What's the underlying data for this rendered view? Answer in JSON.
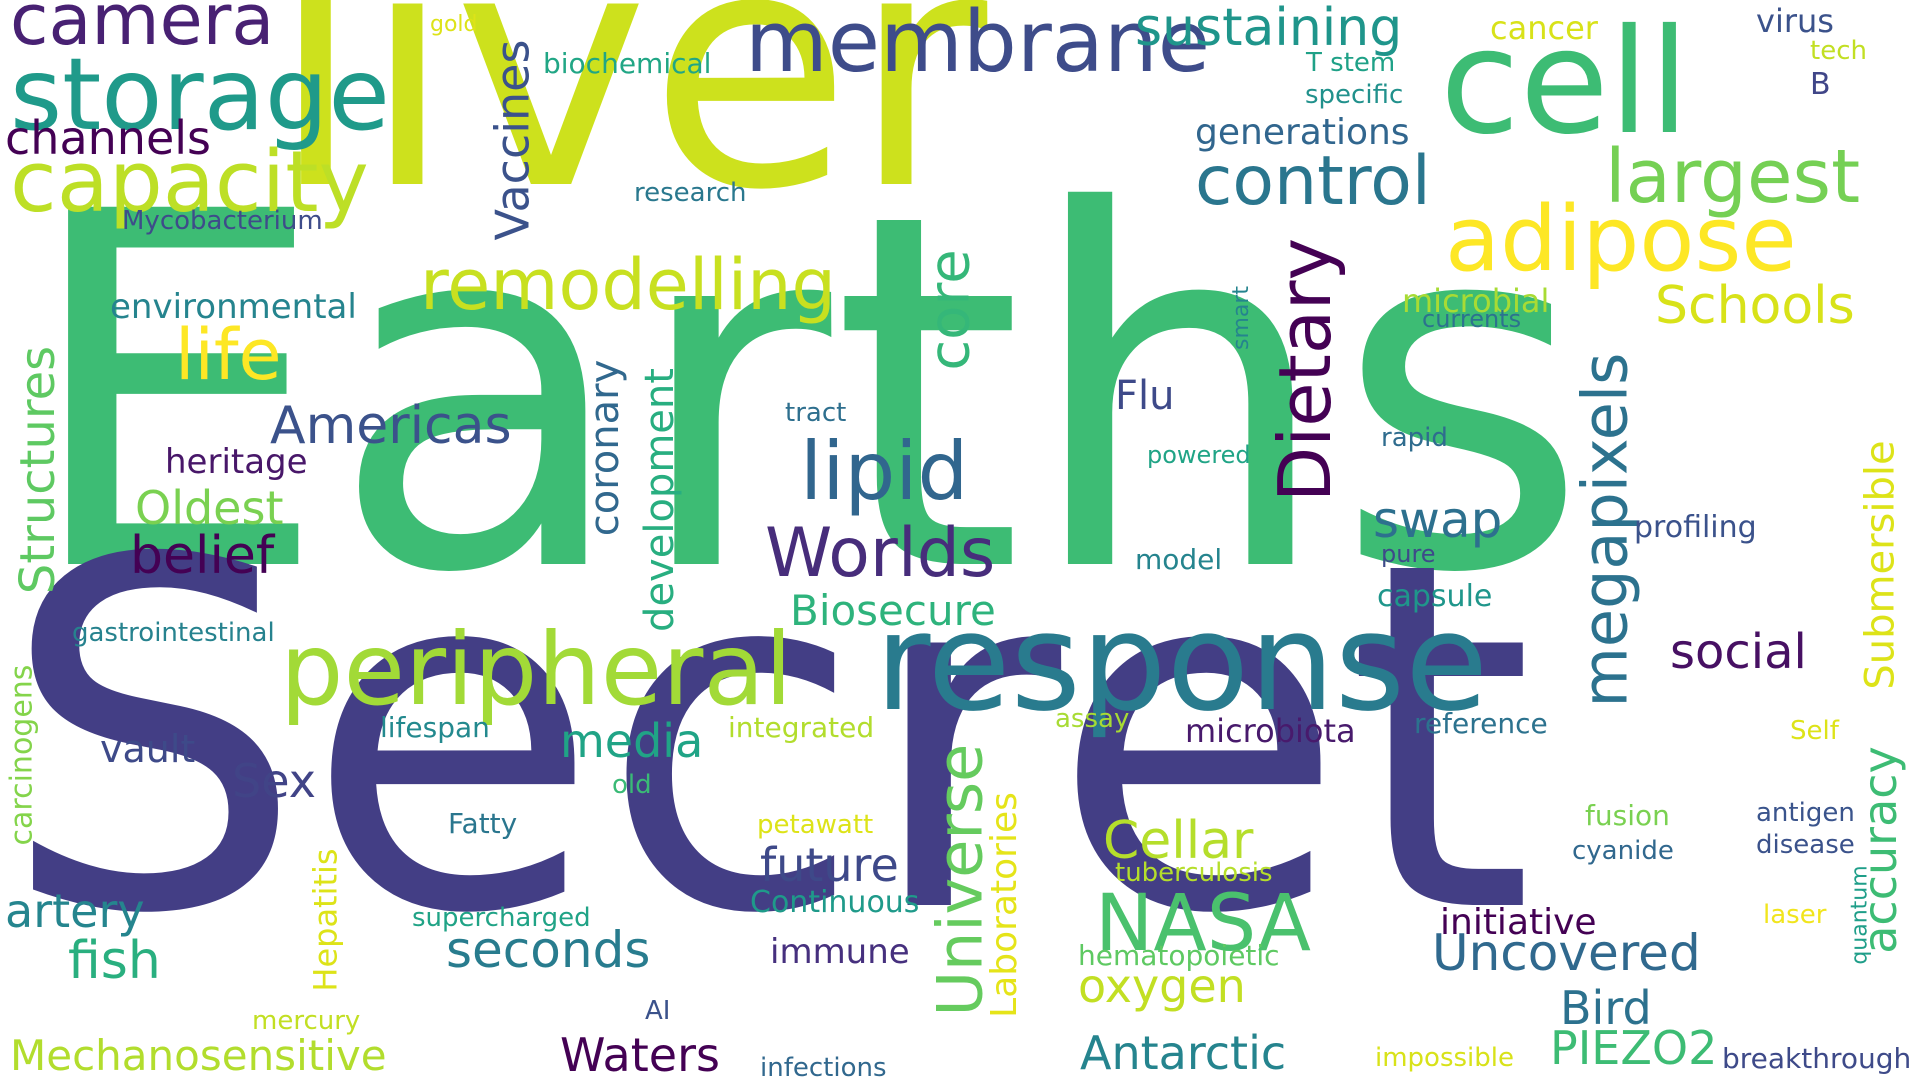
{
  "background": "#ffffff",
  "palette": [
    "#440154",
    "#443a83",
    "#31688e",
    "#21918c",
    "#35b779",
    "#90d743",
    "#c8e020",
    "#fde725"
  ],
  "words": [
    {
      "text": "Earths",
      "color": "#3dbc74",
      "orientation": "horizontal"
    },
    {
      "text": "Secret",
      "color": "#433e85",
      "orientation": "horizontal"
    },
    {
      "text": "liver",
      "color": "#cde11d",
      "orientation": "horizontal"
    },
    {
      "text": "response",
      "color": "#297b8e",
      "orientation": "horizontal"
    },
    {
      "text": "cell",
      "color": "#3dbc74",
      "orientation": "horizontal"
    },
    {
      "text": "storage",
      "color": "#1f9a8a",
      "orientation": "horizontal"
    },
    {
      "text": "peripheral",
      "color": "#a2da37",
      "orientation": "horizontal"
    },
    {
      "text": "membrane",
      "color": "#3e4c8a",
      "orientation": "horizontal"
    },
    {
      "text": "capacity",
      "color": "#bddf26",
      "orientation": "horizontal"
    },
    {
      "text": "adipose",
      "color": "#fde725",
      "orientation": "horizontal"
    },
    {
      "text": "camera",
      "color": "#482173",
      "orientation": "horizontal"
    },
    {
      "text": "control",
      "color": "#2a768e",
      "orientation": "horizontal"
    },
    {
      "text": "largest",
      "color": "#75d054",
      "orientation": "horizontal"
    },
    {
      "text": "remodelling",
      "color": "#c8e020",
      "orientation": "horizontal"
    },
    {
      "text": "lipid",
      "color": "#31668e",
      "orientation": "horizontal"
    },
    {
      "text": "Worlds",
      "color": "#472d7b",
      "orientation": "horizontal"
    },
    {
      "text": "NASA",
      "color": "#4ac16d",
      "orientation": "horizontal"
    },
    {
      "text": "life",
      "color": "#fde725",
      "orientation": "horizontal"
    },
    {
      "text": "sustaining",
      "color": "#1f958b",
      "orientation": "horizontal"
    },
    {
      "text": "Schools",
      "color": "#d8e219",
      "orientation": "horizontal"
    },
    {
      "text": "Americas",
      "color": "#3b528b",
      "orientation": "horizontal"
    },
    {
      "text": "channels",
      "color": "#440154",
      "orientation": "horizontal"
    },
    {
      "text": "Dietary",
      "color": "#440154",
      "orientation": "vertical"
    },
    {
      "text": "megapixels",
      "color": "#2c728e",
      "orientation": "vertical"
    },
    {
      "text": "Universe",
      "color": "#65cb5e",
      "orientation": "vertical"
    },
    {
      "text": "Structures",
      "color": "#5ec962",
      "orientation": "vertical"
    },
    {
      "text": "Vaccines",
      "color": "#3b528b",
      "orientation": "vertical"
    },
    {
      "text": "core",
      "color": "#35b779",
      "orientation": "vertical"
    },
    {
      "text": "coronary",
      "color": "#31688e",
      "orientation": "vertical"
    },
    {
      "text": "development",
      "color": "#28ae80",
      "orientation": "vertical"
    },
    {
      "text": "Submersible",
      "color": "#dde318",
      "orientation": "vertical"
    },
    {
      "text": "accuracy",
      "color": "#3dbc74",
      "orientation": "vertical"
    },
    {
      "text": "Laboratories",
      "color": "#e5e419",
      "orientation": "vertical"
    },
    {
      "text": "Hepatitis",
      "color": "#dde318",
      "orientation": "vertical"
    },
    {
      "text": "carcinogens",
      "color": "#84d44b",
      "orientation": "vertical"
    },
    {
      "text": "quantum",
      "color": "#1f9e89",
      "orientation": "vertical"
    },
    {
      "text": "smart",
      "color": "#25848e",
      "orientation": "vertical"
    },
    {
      "text": "belief",
      "color": "#440154",
      "orientation": "horizontal"
    },
    {
      "text": "Oldest",
      "color": "#7ad151",
      "orientation": "horizontal"
    },
    {
      "text": "heritage",
      "color": "#481769",
      "orientation": "horizontal"
    },
    {
      "text": "environmental",
      "color": "#25848e",
      "orientation": "horizontal"
    },
    {
      "text": "Mycobacterium",
      "color": "#3e4c8a",
      "orientation": "horizontal"
    },
    {
      "text": "research",
      "color": "#2a788e",
      "orientation": "horizontal"
    },
    {
      "text": "biochemical",
      "color": "#21a685",
      "orientation": "horizontal"
    },
    {
      "text": "gold",
      "color": "#dde318",
      "orientation": "horizontal"
    },
    {
      "text": "generations",
      "color": "#31668e",
      "orientation": "horizontal"
    },
    {
      "text": "T stem",
      "color": "#1fa187",
      "orientation": "horizontal"
    },
    {
      "text": "specific",
      "color": "#21918c",
      "orientation": "horizontal"
    },
    {
      "text": "cancer",
      "color": "#d8e219",
      "orientation": "horizontal"
    },
    {
      "text": "virus",
      "color": "#3b528b",
      "orientation": "horizontal"
    },
    {
      "text": "tech",
      "color": "#c2df23",
      "orientation": "horizontal"
    },
    {
      "text": "B",
      "color": "#404688",
      "orientation": "horizontal"
    },
    {
      "text": "microbial",
      "color": "#a8db34",
      "orientation": "horizontal"
    },
    {
      "text": "currents",
      "color": "#2c728e",
      "orientation": "horizontal"
    },
    {
      "text": "Flu",
      "color": "#3e4a89",
      "orientation": "horizontal"
    },
    {
      "text": "tract",
      "color": "#2e6f8e",
      "orientation": "horizontal"
    },
    {
      "text": "powered",
      "color": "#20a486",
      "orientation": "horizontal"
    },
    {
      "text": "rapid",
      "color": "#2f6c8e",
      "orientation": "horizontal"
    },
    {
      "text": "swap",
      "color": "#2d708e",
      "orientation": "horizontal"
    },
    {
      "text": "profiling",
      "color": "#3b528b",
      "orientation": "horizontal"
    },
    {
      "text": "pure",
      "color": "#3e4a89",
      "orientation": "horizontal"
    },
    {
      "text": "model",
      "color": "#25848e",
      "orientation": "horizontal"
    },
    {
      "text": "capsule",
      "color": "#1f968b",
      "orientation": "horizontal"
    },
    {
      "text": "Biosecure",
      "color": "#2eb37c",
      "orientation": "horizontal"
    },
    {
      "text": "social",
      "color": "#471063",
      "orientation": "horizontal"
    },
    {
      "text": "gastrointestinal",
      "color": "#26828e",
      "orientation": "horizontal"
    },
    {
      "text": "media",
      "color": "#20a486",
      "orientation": "horizontal"
    },
    {
      "text": "lifespan",
      "color": "#23898e",
      "orientation": "horizontal"
    },
    {
      "text": "integrated",
      "color": "#b2dd2d",
      "orientation": "horizontal"
    },
    {
      "text": "assay",
      "color": "#a8db34",
      "orientation": "horizontal"
    },
    {
      "text": "microbiota",
      "color": "#481a6c",
      "orientation": "horizontal"
    },
    {
      "text": "reference",
      "color": "#2c728e",
      "orientation": "horizontal"
    },
    {
      "text": "Self",
      "color": "#dde318",
      "orientation": "horizontal"
    },
    {
      "text": "vault",
      "color": "#3e4a89",
      "orientation": "horizontal"
    },
    {
      "text": "Sex",
      "color": "#414487",
      "orientation": "horizontal"
    },
    {
      "text": "old",
      "color": "#3aba76",
      "orientation": "horizontal"
    },
    {
      "text": "Fatty",
      "color": "#2a768e",
      "orientation": "horizontal"
    },
    {
      "text": "petawatt",
      "color": "#dde318",
      "orientation": "horizontal"
    },
    {
      "text": "Cellar",
      "color": "#b5de2b",
      "orientation": "horizontal"
    },
    {
      "text": "fusion",
      "color": "#7ad151",
      "orientation": "horizontal"
    },
    {
      "text": "antigen",
      "color": "#3a548c",
      "orientation": "horizontal"
    },
    {
      "text": "disease",
      "color": "#3b528b",
      "orientation": "horizontal"
    },
    {
      "text": "cyanide",
      "color": "#31688e",
      "orientation": "horizontal"
    },
    {
      "text": "future",
      "color": "#3e4989",
      "orientation": "horizontal"
    },
    {
      "text": "tuberculosis",
      "color": "#b5de2b",
      "orientation": "horizontal"
    },
    {
      "text": "Continuous",
      "color": "#1f9a8a",
      "orientation": "horizontal"
    },
    {
      "text": "artery",
      "color": "#25858e",
      "orientation": "horizontal"
    },
    {
      "text": "supercharged",
      "color": "#20a386",
      "orientation": "horizontal"
    },
    {
      "text": "fish",
      "color": "#29af7f",
      "orientation": "horizontal"
    },
    {
      "text": "seconds",
      "color": "#287c8e",
      "orientation": "horizontal"
    },
    {
      "text": "immune",
      "color": "#46307e",
      "orientation": "horizontal"
    },
    {
      "text": "initiative",
      "color": "#440154",
      "orientation": "horizontal"
    },
    {
      "text": "Uncovered",
      "color": "#30698e",
      "orientation": "horizontal"
    },
    {
      "text": "laser",
      "color": "#f1e51d",
      "orientation": "horizontal"
    },
    {
      "text": "hematopoietic",
      "color": "#5ec962",
      "orientation": "horizontal"
    },
    {
      "text": "oxygen",
      "color": "#c2df23",
      "orientation": "horizontal"
    },
    {
      "text": "Bird",
      "color": "#2c718e",
      "orientation": "horizontal"
    },
    {
      "text": "mercury",
      "color": "#c2df23",
      "orientation": "horizontal"
    },
    {
      "text": "AI",
      "color": "#3b528b",
      "orientation": "horizontal"
    },
    {
      "text": "Mechanosensitive",
      "color": "#b2dd2d",
      "orientation": "horizontal"
    },
    {
      "text": "Waters",
      "color": "#440154",
      "orientation": "horizontal"
    },
    {
      "text": "infections",
      "color": "#31688e",
      "orientation": "horizontal"
    },
    {
      "text": "Antarctic",
      "color": "#25848e",
      "orientation": "horizontal"
    },
    {
      "text": "impossible",
      "color": "#d8e219",
      "orientation": "horizontal"
    },
    {
      "text": "PIEZO2",
      "color": "#3dbc74",
      "orientation": "horizontal"
    },
    {
      "text": "breakthrough",
      "color": "#3e4a89",
      "orientation": "horizontal"
    }
  ]
}
